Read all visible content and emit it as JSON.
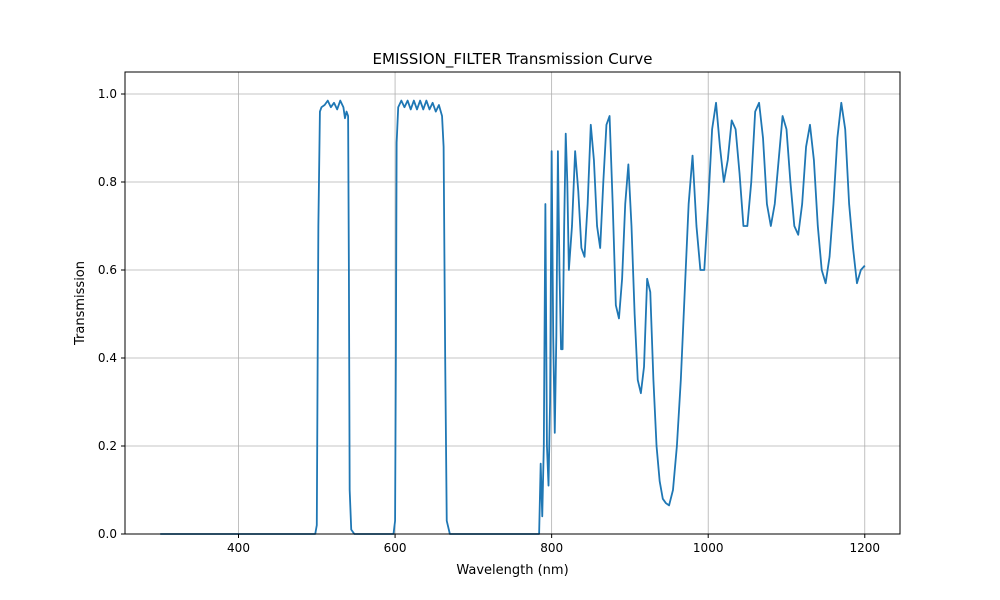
{
  "chart_data": {
    "type": "line",
    "title": "EMISSION_FILTER Transmission Curve",
    "xlabel": "Wavelength (nm)",
    "ylabel": "Transmission",
    "xlim": [
      255,
      1245
    ],
    "ylim": [
      0.0,
      1.05
    ],
    "xticks": [
      400,
      600,
      800,
      1000,
      1200
    ],
    "yticks": [
      0.0,
      0.2,
      0.4,
      0.6,
      0.8,
      1.0
    ],
    "xtick_labels": [
      "400",
      "600",
      "800",
      "1000",
      "1200"
    ],
    "ytick_labels": [
      "0.0",
      "0.2",
      "0.4",
      "0.6",
      "0.8",
      "1.0"
    ],
    "grid": true,
    "line_color": "#1f77b4",
    "series": [
      {
        "x": [
          300,
          400,
          498,
          500,
          502,
          504,
          506,
          510,
          514,
          518,
          522,
          526,
          530,
          534,
          536,
          538,
          540,
          541,
          542,
          544,
          548,
          560,
          580,
          598,
          600,
          601,
          602,
          604,
          608,
          612,
          616,
          620,
          624,
          628,
          632,
          636,
          640,
          644,
          648,
          652,
          656,
          660,
          662,
          664,
          666,
          670,
          700,
          760,
          784,
          786,
          788,
          790,
          792,
          794,
          796,
          798,
          800,
          802,
          804,
          806,
          808,
          810,
          812,
          814,
          816,
          818,
          820,
          822,
          826,
          830,
          834,
          838,
          842,
          846,
          850,
          854,
          858,
          862,
          866,
          870,
          874,
          878,
          882,
          886,
          890,
          894,
          898,
          902,
          906,
          910,
          914,
          918,
          922,
          926,
          930,
          934,
          938,
          942,
          946,
          950,
          955,
          960,
          965,
          970,
          975,
          980,
          985,
          990,
          995,
          1000,
          1005,
          1010,
          1015,
          1020,
          1025,
          1030,
          1035,
          1040,
          1045,
          1050,
          1055,
          1060,
          1065,
          1070,
          1075,
          1080,
          1085,
          1090,
          1095,
          1100,
          1105,
          1110,
          1115,
          1120,
          1125,
          1130,
          1135,
          1140,
          1145,
          1150,
          1155,
          1160,
          1165,
          1170,
          1175,
          1180,
          1185,
          1190,
          1195,
          1200
        ],
        "y": [
          0.0,
          0.0,
          0.0,
          0.02,
          0.7,
          0.96,
          0.97,
          0.975,
          0.985,
          0.97,
          0.98,
          0.965,
          0.985,
          0.97,
          0.945,
          0.96,
          0.95,
          0.6,
          0.1,
          0.01,
          0.0,
          0.0,
          0.0,
          0.0,
          0.03,
          0.4,
          0.89,
          0.97,
          0.985,
          0.97,
          0.985,
          0.965,
          0.985,
          0.965,
          0.985,
          0.965,
          0.985,
          0.965,
          0.98,
          0.96,
          0.975,
          0.95,
          0.88,
          0.4,
          0.03,
          0.0,
          0.0,
          0.0,
          0.0,
          0.16,
          0.04,
          0.2,
          0.75,
          0.2,
          0.11,
          0.3,
          0.87,
          0.45,
          0.23,
          0.45,
          0.87,
          0.6,
          0.42,
          0.42,
          0.7,
          0.91,
          0.8,
          0.6,
          0.7,
          0.87,
          0.78,
          0.65,
          0.63,
          0.75,
          0.93,
          0.85,
          0.7,
          0.65,
          0.8,
          0.93,
          0.95,
          0.75,
          0.52,
          0.49,
          0.58,
          0.75,
          0.84,
          0.7,
          0.5,
          0.35,
          0.32,
          0.38,
          0.58,
          0.55,
          0.35,
          0.2,
          0.12,
          0.08,
          0.07,
          0.065,
          0.1,
          0.2,
          0.35,
          0.55,
          0.75,
          0.86,
          0.7,
          0.6,
          0.6,
          0.75,
          0.92,
          0.98,
          0.88,
          0.8,
          0.85,
          0.94,
          0.92,
          0.82,
          0.7,
          0.7,
          0.8,
          0.96,
          0.98,
          0.9,
          0.75,
          0.7,
          0.75,
          0.85,
          0.95,
          0.92,
          0.8,
          0.7,
          0.68,
          0.75,
          0.88,
          0.93,
          0.85,
          0.7,
          0.6,
          0.57,
          0.63,
          0.75,
          0.9,
          0.98,
          0.92,
          0.75,
          0.65,
          0.57,
          0.6,
          0.61
        ]
      }
    ]
  }
}
